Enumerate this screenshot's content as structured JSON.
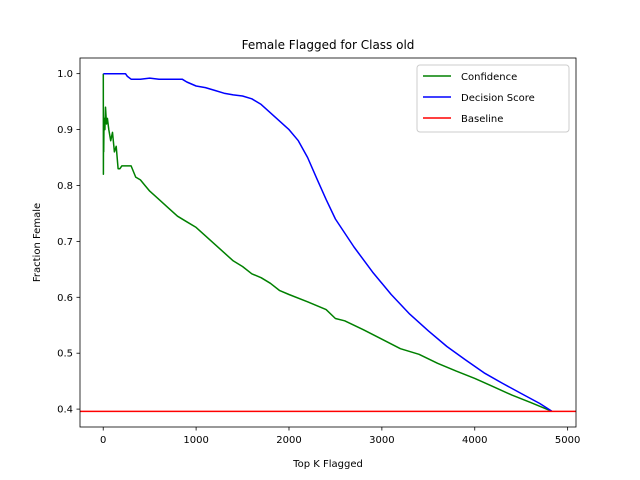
{
  "chart_data": {
    "type": "line",
    "title": "Female Flagged for Class old",
    "xlabel": "Top K Flagged",
    "ylabel": "Fraction Female",
    "xlim": [
      -250,
      5090
    ],
    "ylim": [
      0.368,
      1.028
    ],
    "xticks": [
      0,
      1000,
      2000,
      3000,
      4000,
      5000
    ],
    "yticks": [
      0.4,
      0.5,
      0.6,
      0.7,
      0.8,
      0.9,
      1.0
    ],
    "xtick_labels": [
      "0",
      "1000",
      "2000",
      "3000",
      "4000",
      "5000"
    ],
    "ytick_labels": [
      "0.4",
      "0.5",
      "0.6",
      "0.7",
      "0.8",
      "0.9",
      "1.0"
    ],
    "legend_position": "top-right",
    "grid": false,
    "series": [
      {
        "name": "Confidence",
        "color": "#008000",
        "x": [
          1,
          2,
          3,
          5,
          8,
          12,
          18,
          25,
          35,
          45,
          60,
          80,
          100,
          120,
          140,
          160,
          180,
          200,
          250,
          300,
          350,
          400,
          450,
          500,
          600,
          700,
          800,
          900,
          1000,
          1100,
          1200,
          1300,
          1400,
          1500,
          1600,
          1700,
          1800,
          1900,
          2000,
          2200,
          2400,
          2500,
          2600,
          2800,
          3000,
          3200,
          3400,
          3600,
          3800,
          4000,
          4200,
          4400,
          4600,
          4830
        ],
        "y": [
          1.0,
          0.82,
          0.9,
          0.86,
          0.91,
          0.92,
          0.9,
          0.94,
          0.91,
          0.92,
          0.9,
          0.88,
          0.895,
          0.86,
          0.87,
          0.83,
          0.83,
          0.835,
          0.835,
          0.835,
          0.815,
          0.81,
          0.8,
          0.79,
          0.775,
          0.76,
          0.745,
          0.735,
          0.725,
          0.71,
          0.695,
          0.68,
          0.665,
          0.655,
          0.642,
          0.635,
          0.625,
          0.612,
          0.605,
          0.592,
          0.578,
          0.562,
          0.558,
          0.542,
          0.525,
          0.508,
          0.498,
          0.482,
          0.468,
          0.455,
          0.44,
          0.425,
          0.412,
          0.396
        ]
      },
      {
        "name": "Decision Score",
        "color": "#0000ff",
        "x": [
          1,
          2,
          5,
          50,
          100,
          150,
          200,
          240,
          260,
          300,
          400,
          500,
          600,
          700,
          800,
          850,
          900,
          1000,
          1100,
          1200,
          1300,
          1400,
          1500,
          1600,
          1700,
          1800,
          1900,
          2000,
          2100,
          2200,
          2300,
          2400,
          2500,
          2700,
          2900,
          3100,
          3300,
          3500,
          3700,
          3900,
          4100,
          4300,
          4500,
          4700,
          4830
        ],
        "y": [
          1.0,
          1.0,
          1.0,
          1.0,
          1.0,
          1.0,
          1.0,
          1.0,
          0.995,
          0.99,
          0.99,
          0.992,
          0.99,
          0.99,
          0.99,
          0.99,
          0.985,
          0.978,
          0.975,
          0.97,
          0.965,
          0.962,
          0.96,
          0.955,
          0.945,
          0.93,
          0.915,
          0.9,
          0.88,
          0.85,
          0.812,
          0.775,
          0.74,
          0.69,
          0.645,
          0.605,
          0.57,
          0.54,
          0.512,
          0.488,
          0.465,
          0.446,
          0.428,
          0.41,
          0.396
        ]
      },
      {
        "name": "Baseline",
        "color": "#ff0000",
        "constant": 0.396
      }
    ]
  }
}
